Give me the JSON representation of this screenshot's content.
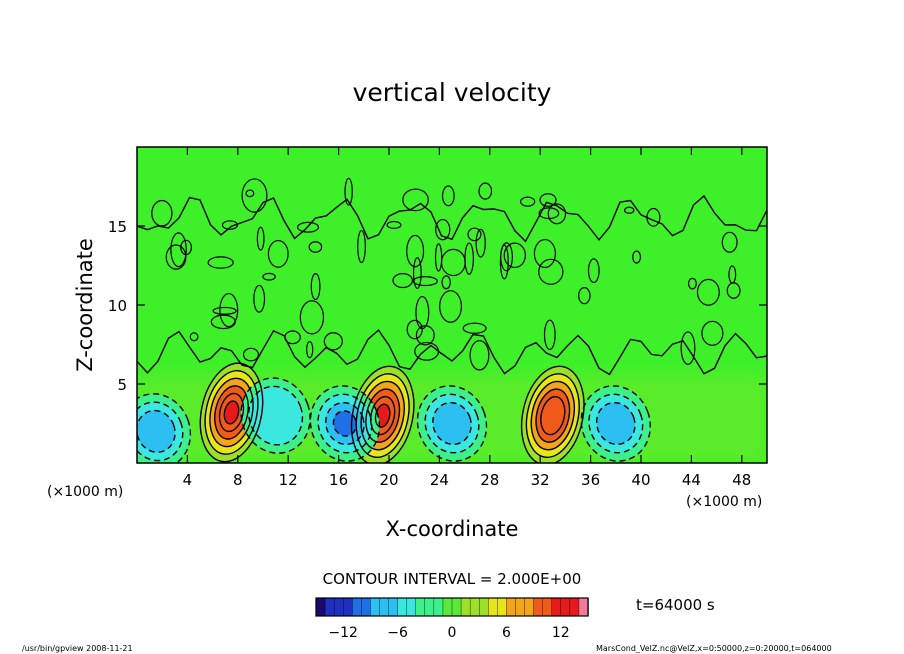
{
  "chart_data": {
    "type": "heatmap",
    "title": "vertical velocity",
    "xlabel": "X-coordinate",
    "ylabel": "Z-coordinate",
    "x_unit_left": "(×1000 m)",
    "x_unit_right": "(×1000 m)",
    "xlim": [
      0,
      50
    ],
    "ylim": [
      0,
      20
    ],
    "x_ticks": [
      4,
      8,
      12,
      16,
      20,
      24,
      28,
      32,
      36,
      40,
      44,
      48
    ],
    "y_ticks": [
      5,
      10,
      15
    ],
    "contour_interval_label": "CONTOUR INTERVAL = 2.000E+00",
    "time_label": "t=64000 s",
    "colorbar": {
      "min": -15,
      "max": 15,
      "ticks": [
        -12,
        -6,
        0,
        6,
        12
      ],
      "colors": [
        "#1a0a6e",
        "#1f2fbf",
        "#1f6fe6",
        "#2cbff2",
        "#3be8e0",
        "#3ef08c",
        "#5ae83a",
        "#9de02a",
        "#e6e61a",
        "#f2a41a",
        "#f05a1a",
        "#e61a1a",
        "#f07a9a"
      ]
    },
    "features": [
      {
        "kind": "updraft",
        "x": 7.5,
        "z": 3.2,
        "value": 12
      },
      {
        "kind": "updraft",
        "x": 19.5,
        "z": 3.0,
        "value": 12
      },
      {
        "kind": "updraft",
        "x": 33,
        "z": 3.0,
        "value": 10
      },
      {
        "kind": "downdraft",
        "x": 1.5,
        "z": 2.0,
        "value": -6
      },
      {
        "kind": "downdraft",
        "x": 16.5,
        "z": 2.5,
        "value": -8
      },
      {
        "kind": "downdraft",
        "x": 25,
        "z": 2.5,
        "value": -6
      },
      {
        "kind": "downdraft",
        "x": 38,
        "z": 2.5,
        "value": -6
      },
      {
        "kind": "downdraft",
        "x": 11,
        "z": 3.0,
        "value": -4
      }
    ]
  },
  "footer": {
    "program": "/usr/bin/gpview  2008-11-21",
    "source": "MarsCond_VelZ.nc@VelZ,x=0:50000,z=0:20000,t=064000"
  }
}
